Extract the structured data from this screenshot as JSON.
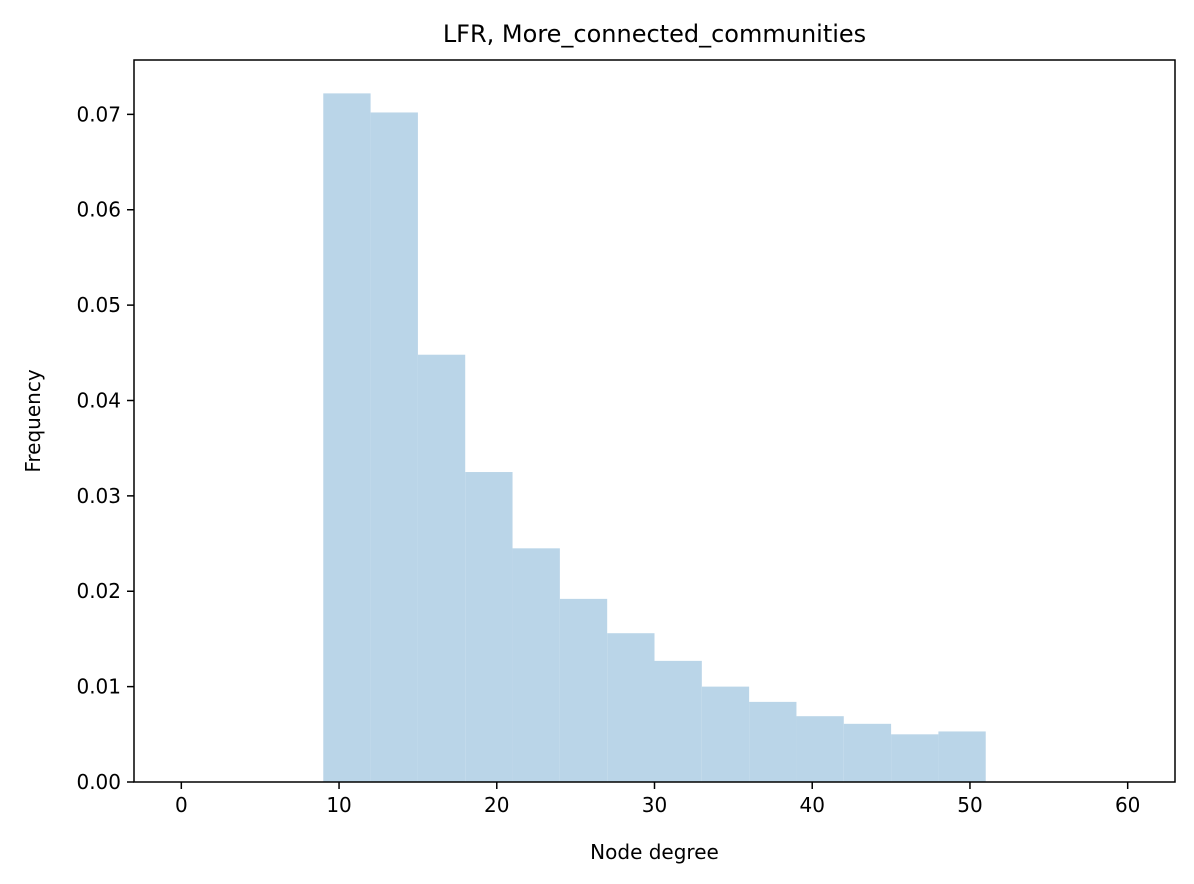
{
  "chart_data": {
    "type": "bar",
    "title": "LFR, More_connected_communities",
    "xlabel": "Node degree",
    "ylabel": "Frequency",
    "xlim": [
      -3,
      63
    ],
    "ylim": [
      0,
      0.0757
    ],
    "xticks": [
      0,
      10,
      20,
      30,
      40,
      50,
      60
    ],
    "xtick_labels": [
      "0",
      "10",
      "20",
      "30",
      "40",
      "50",
      "60"
    ],
    "yticks": [
      0,
      0.01,
      0.02,
      0.03,
      0.04,
      0.05,
      0.06,
      0.07
    ],
    "ytick_labels": [
      "0.00",
      "0.01",
      "0.02",
      "0.03",
      "0.04",
      "0.05",
      "0.06",
      "0.07"
    ],
    "grid": false,
    "bar_color": "#bad5e8",
    "bins": [
      {
        "start": 9,
        "end": 12,
        "value": 0.0722
      },
      {
        "start": 12,
        "end": 15,
        "value": 0.0702
      },
      {
        "start": 15,
        "end": 18,
        "value": 0.0448
      },
      {
        "start": 18,
        "end": 21,
        "value": 0.0325
      },
      {
        "start": 21,
        "end": 24,
        "value": 0.0245
      },
      {
        "start": 24,
        "end": 27,
        "value": 0.0192
      },
      {
        "start": 27,
        "end": 30,
        "value": 0.0156
      },
      {
        "start": 30,
        "end": 33,
        "value": 0.0127
      },
      {
        "start": 33,
        "end": 36,
        "value": 0.01
      },
      {
        "start": 36,
        "end": 39,
        "value": 0.0084
      },
      {
        "start": 39,
        "end": 42,
        "value": 0.0069
      },
      {
        "start": 42,
        "end": 45,
        "value": 0.0061
      },
      {
        "start": 45,
        "end": 48,
        "value": 0.005
      },
      {
        "start": 48,
        "end": 51,
        "value": 0.0053
      }
    ]
  }
}
